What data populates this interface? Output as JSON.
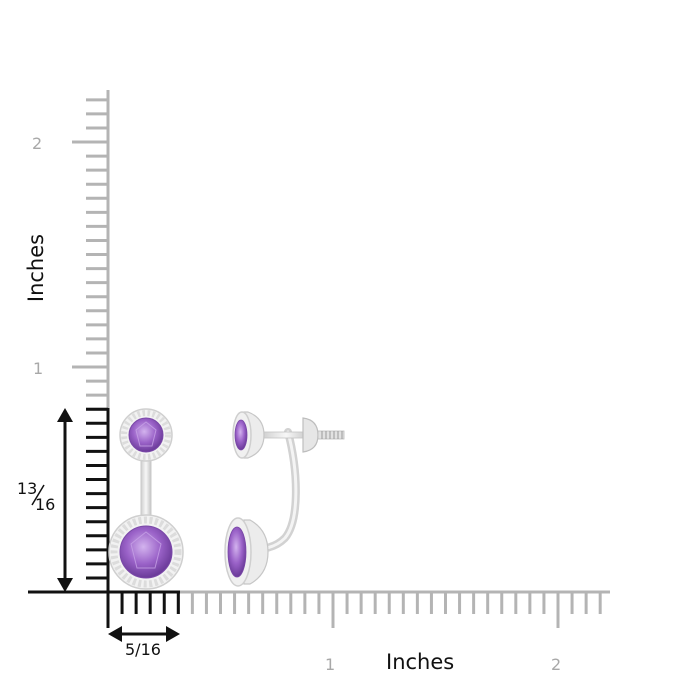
{
  "y_axis": {
    "title": "Inches",
    "tick_labels": [
      "2",
      "1"
    ]
  },
  "x_axis": {
    "title": "Inches",
    "tick_labels": [
      "1",
      "2"
    ]
  },
  "height_dimension": {
    "numerator": "13",
    "denominator": "16"
  },
  "width_dimension": {
    "label": "5/16"
  },
  "colors": {
    "ruler_gray": "#b4b4b4",
    "ruler_black": "#111111",
    "amethyst": "#9a62c8",
    "amethyst_dark": "#6a3a98",
    "metal": "#e9e9e9",
    "halo_diamond": "#f4f4f4"
  },
  "product": {
    "front_view": "earring-jackets-front-icon",
    "side_view": "earring-jackets-side-icon"
  }
}
